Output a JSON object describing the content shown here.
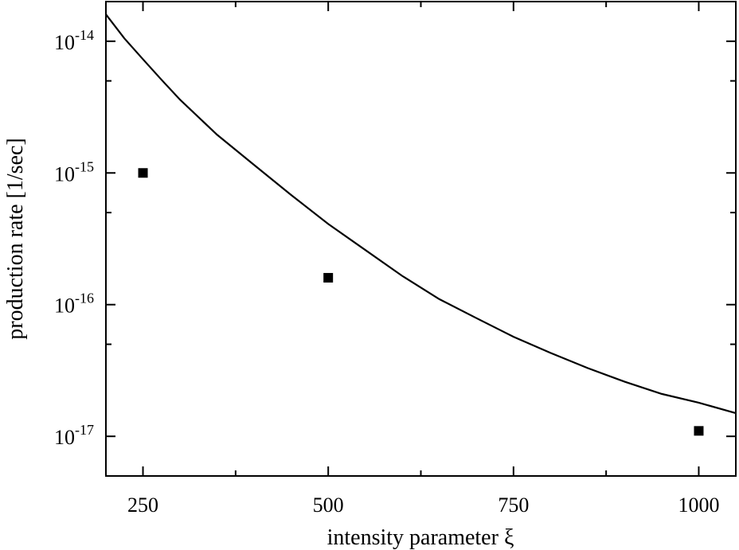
{
  "chart_data": {
    "type": "scatter",
    "title": "",
    "xlabel": "intensity parameter ξ",
    "ylabel": "production rate [1/sec]",
    "xlim": [
      200,
      1050
    ],
    "ylim": [
      5e-18,
      2e-14
    ],
    "yscale": "log",
    "grid": false,
    "x_ticks": [
      250,
      500,
      750,
      1000
    ],
    "x_tick_labels": [
      "250",
      "500",
      "750",
      "1000"
    ],
    "x_minor_ticks": [
      375,
      625,
      875
    ],
    "y_ticks": [
      {
        "value": 1e-14,
        "base": "10",
        "exp": "-14"
      },
      {
        "value": 1e-15,
        "base": "10",
        "exp": "-15"
      },
      {
        "value": 1e-16,
        "base": "10",
        "exp": "-16"
      },
      {
        "value": 1e-17,
        "base": "10",
        "exp": "-17"
      }
    ],
    "series": [
      {
        "type": "line",
        "color": "#000000",
        "x": [
          200,
          225,
          250,
          275,
          300,
          350,
          400,
          450,
          500,
          550,
          600,
          650,
          700,
          750,
          800,
          850,
          900,
          950,
          1000,
          1050
        ],
        "y": [
          1.6e-14,
          1.05e-14,
          7.3e-15,
          5.1e-15,
          3.6e-15,
          1.95e-15,
          1.15e-15,
          6.8e-16,
          4.1e-16,
          2.6e-16,
          1.65e-16,
          1.1e-16,
          7.9e-17,
          5.7e-17,
          4.3e-17,
          3.3e-17,
          2.6e-17,
          2.1e-17,
          1.8e-17,
          1.5e-17
        ]
      },
      {
        "type": "scatter",
        "marker": "square",
        "color": "#000000",
        "x": [
          250,
          500,
          1000
        ],
        "y": [
          1e-15,
          1.6e-16,
          1.1e-17
        ]
      }
    ]
  }
}
